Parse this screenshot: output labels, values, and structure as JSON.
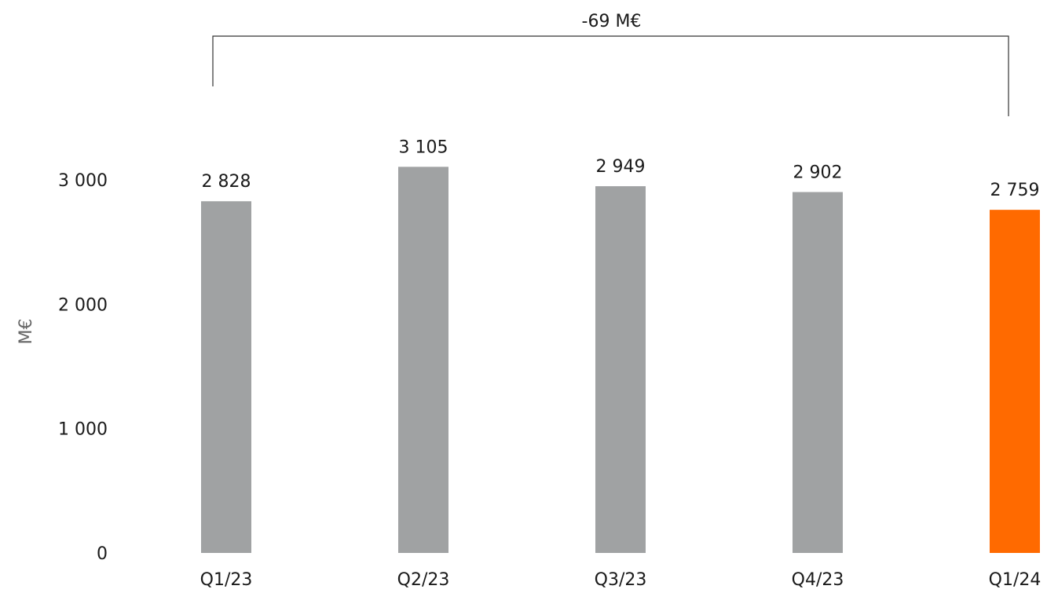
{
  "chart_data": {
    "type": "bar",
    "categories": [
      "Q1/23",
      "Q2/23",
      "Q3/23",
      "Q4/23",
      "Q1/24"
    ],
    "values": [
      2828,
      3105,
      2949,
      2902,
      2759
    ],
    "value_labels": [
      "2 828",
      "3 105",
      "2 949",
      "2 902",
      "2 759"
    ],
    "ylabel": "M€",
    "ylim": [
      0,
      3000
    ],
    "yticks": [
      0,
      1000,
      2000,
      3000
    ],
    "ytick_labels": [
      "0",
      "1 000",
      "2 000",
      "3 000"
    ],
    "grid": false,
    "colors": [
      "#a0a2a3",
      "#a0a2a3",
      "#a0a2a3",
      "#a0a2a3",
      "#ff6a00"
    ],
    "annotation": {
      "text": "-69 M€",
      "from_category": "Q1/23",
      "to_category": "Q1/24"
    }
  }
}
